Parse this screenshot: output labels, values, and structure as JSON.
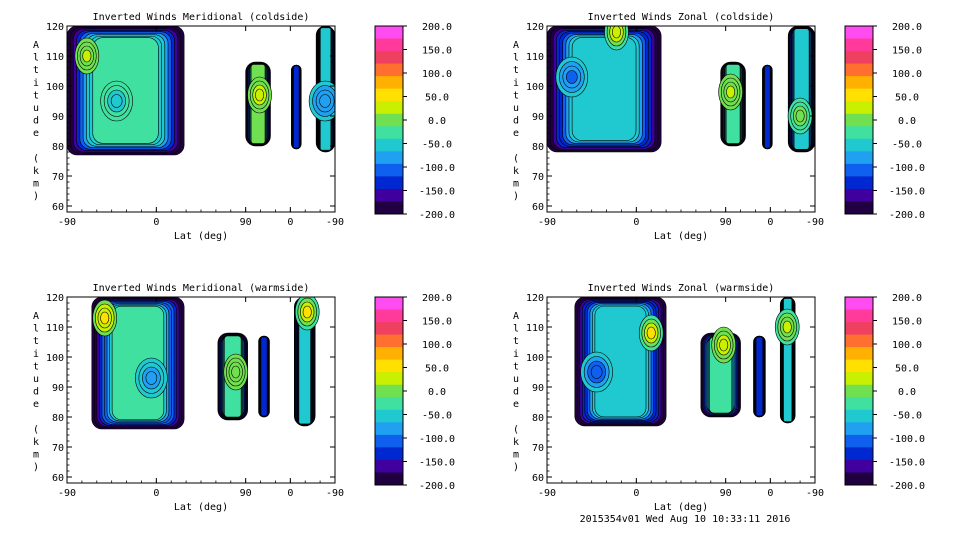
{
  "figure": {
    "footer": "2015354v01 Wed Aug 10 10:33:11 2016"
  },
  "colorbar": {
    "labels": [
      "200.0",
      "150.0",
      "100.0",
      "50.0",
      "0.0",
      "-50.0",
      "-100.0",
      "-150.0",
      "-200.0"
    ],
    "colors": [
      "#ff4cf0",
      "#ff3a9a",
      "#f04060",
      "#ff7030",
      "#ffb000",
      "#ffe000",
      "#c8f000",
      "#70e050",
      "#40e0a0",
      "#20c8d0",
      "#20a0f0",
      "#1060f0",
      "#0028d0",
      "#4000a0",
      "#200040"
    ]
  },
  "chart_data": [
    {
      "type": "heatmap",
      "name": "meridional-coldside",
      "title": "Inverted Winds Meridional (coldside)",
      "xlabel": "Lat (deg)",
      "ylabel": "Altitude (km)",
      "x_ticks": [
        "-90",
        "0",
        "90",
        "0",
        "-90"
      ],
      "y_ticks": [
        "60",
        "70",
        "80",
        "90",
        "100",
        "110",
        "120"
      ],
      "ylim": [
        58,
        120
      ],
      "value_range": [
        -200,
        200
      ],
      "regions": [
        {
          "x_range": [
            -90,
            28
          ],
          "alt_range": [
            77,
            120
          ],
          "mean_value": -20,
          "hi_spots": [
            {
              "x": -70,
              "alt": 110,
              "value": 15
            }
          ],
          "lo_spots": [
            {
              "x": -40,
              "alt": 95,
              "value": -55
            }
          ]
        },
        {
          "x_range": [
            90,
            115
          ],
          "alt_range": [
            80,
            108
          ],
          "mean_value": -5,
          "hi_spots": [
            {
              "x": 104,
              "alt": 97,
              "value": 25
            }
          ],
          "lo_spots": []
        },
        {
          "x_range": [
            136,
            146
          ],
          "alt_range": [
            79,
            107
          ],
          "mean_value": -140,
          "hi_spots": [],
          "lo_spots": []
        },
        {
          "x_range": [
            161,
            180
          ],
          "alt_range": [
            78,
            120
          ],
          "mean_value": -45,
          "hi_spots": [],
          "lo_spots": [
            {
              "x": 170,
              "alt": 95,
              "value": -90
            }
          ]
        }
      ]
    },
    {
      "type": "heatmap",
      "name": "zonal-coldside",
      "title": "Inverted Winds Zonal (coldside)",
      "xlabel": "Lat (deg)",
      "ylabel": "Altitude (km)",
      "x_ticks": [
        "-90",
        "0",
        "90",
        "0",
        "-90"
      ],
      "y_ticks": [
        "60",
        "70",
        "80",
        "90",
        "100",
        "110",
        "120"
      ],
      "ylim": [
        58,
        120
      ],
      "value_range": [
        -200,
        200
      ],
      "regions": [
        {
          "x_range": [
            -90,
            25
          ],
          "alt_range": [
            78,
            120
          ],
          "mean_value": -40,
          "hi_spots": [
            {
              "x": -20,
              "alt": 118,
              "value": 40
            }
          ],
          "lo_spots": [
            {
              "x": -65,
              "alt": 103,
              "value": -105
            }
          ]
        },
        {
          "x_range": [
            85,
            110
          ],
          "alt_range": [
            80,
            108
          ],
          "mean_value": -15,
          "hi_spots": [
            {
              "x": 95,
              "alt": 98,
              "value": 15
            }
          ],
          "lo_spots": []
        },
        {
          "x_range": [
            127,
            137
          ],
          "alt_range": [
            79,
            107
          ],
          "mean_value": -130,
          "hi_spots": [],
          "lo_spots": []
        },
        {
          "x_range": [
            153,
            180
          ],
          "alt_range": [
            78,
            120
          ],
          "mean_value": -50,
          "hi_spots": [
            {
              "x": 165,
              "alt": 90,
              "value": 5
            }
          ],
          "lo_spots": []
        }
      ]
    },
    {
      "type": "heatmap",
      "name": "meridional-warmside",
      "title": "Inverted Winds Meridional (warmside)",
      "xlabel": "Lat (deg)",
      "ylabel": "Altitude (km)",
      "x_ticks": [
        "-90",
        "0",
        "90",
        "0",
        "-90"
      ],
      "y_ticks": [
        "60",
        "70",
        "80",
        "90",
        "100",
        "110",
        "120"
      ],
      "ylim": [
        58,
        120
      ],
      "value_range": [
        -200,
        200
      ],
      "regions": [
        {
          "x_range": [
            -65,
            28
          ],
          "alt_range": [
            76,
            120
          ],
          "mean_value": -30,
          "hi_spots": [
            {
              "x": -52,
              "alt": 113,
              "value": 60
            }
          ],
          "lo_spots": [
            {
              "x": -5,
              "alt": 93,
              "value": -90
            }
          ]
        },
        {
          "x_range": [
            62,
            92
          ],
          "alt_range": [
            79,
            108
          ],
          "mean_value": -20,
          "hi_spots": [
            {
              "x": 80,
              "alt": 95,
              "value": 10
            }
          ],
          "lo_spots": []
        },
        {
          "x_range": [
            103,
            114
          ],
          "alt_range": [
            80,
            107
          ],
          "mean_value": -130,
          "hi_spots": [],
          "lo_spots": []
        },
        {
          "x_range": [
            139,
            160
          ],
          "alt_range": [
            77,
            120
          ],
          "mean_value": -50,
          "hi_spots": [
            {
              "x": 152,
              "alt": 115,
              "value": 60
            }
          ],
          "lo_spots": []
        }
      ]
    },
    {
      "type": "heatmap",
      "name": "zonal-warmside",
      "title": "Inverted Winds Zonal (warmside)",
      "xlabel": "Lat (deg)",
      "ylabel": "Altitude (km)",
      "x_ticks": [
        "-90",
        "0",
        "90",
        "0",
        "-90"
      ],
      "y_ticks": [
        "60",
        "70",
        "80",
        "90",
        "100",
        "110",
        "120"
      ],
      "ylim": [
        58,
        120
      ],
      "value_range": [
        -200,
        200
      ],
      "regions": [
        {
          "x_range": [
            -62,
            30
          ],
          "alt_range": [
            77,
            120
          ],
          "mean_value": -40,
          "hi_spots": [
            {
              "x": 15,
              "alt": 108,
              "value": 55
            }
          ],
          "lo_spots": [
            {
              "x": -40,
              "alt": 95,
              "value": -115
            }
          ]
        },
        {
          "x_range": [
            65,
            105
          ],
          "alt_range": [
            80,
            108
          ],
          "mean_value": -20,
          "hi_spots": [
            {
              "x": 88,
              "alt": 104,
              "value": 30
            }
          ],
          "lo_spots": []
        },
        {
          "x_range": [
            118,
            130
          ],
          "alt_range": [
            80,
            107
          ],
          "mean_value": -140,
          "hi_spots": [],
          "lo_spots": []
        },
        {
          "x_range": [
            145,
            160
          ],
          "alt_range": [
            78,
            120
          ],
          "mean_value": -40,
          "hi_spots": [
            {
              "x": 152,
              "alt": 110,
              "value": 30
            }
          ],
          "lo_spots": []
        }
      ]
    }
  ]
}
